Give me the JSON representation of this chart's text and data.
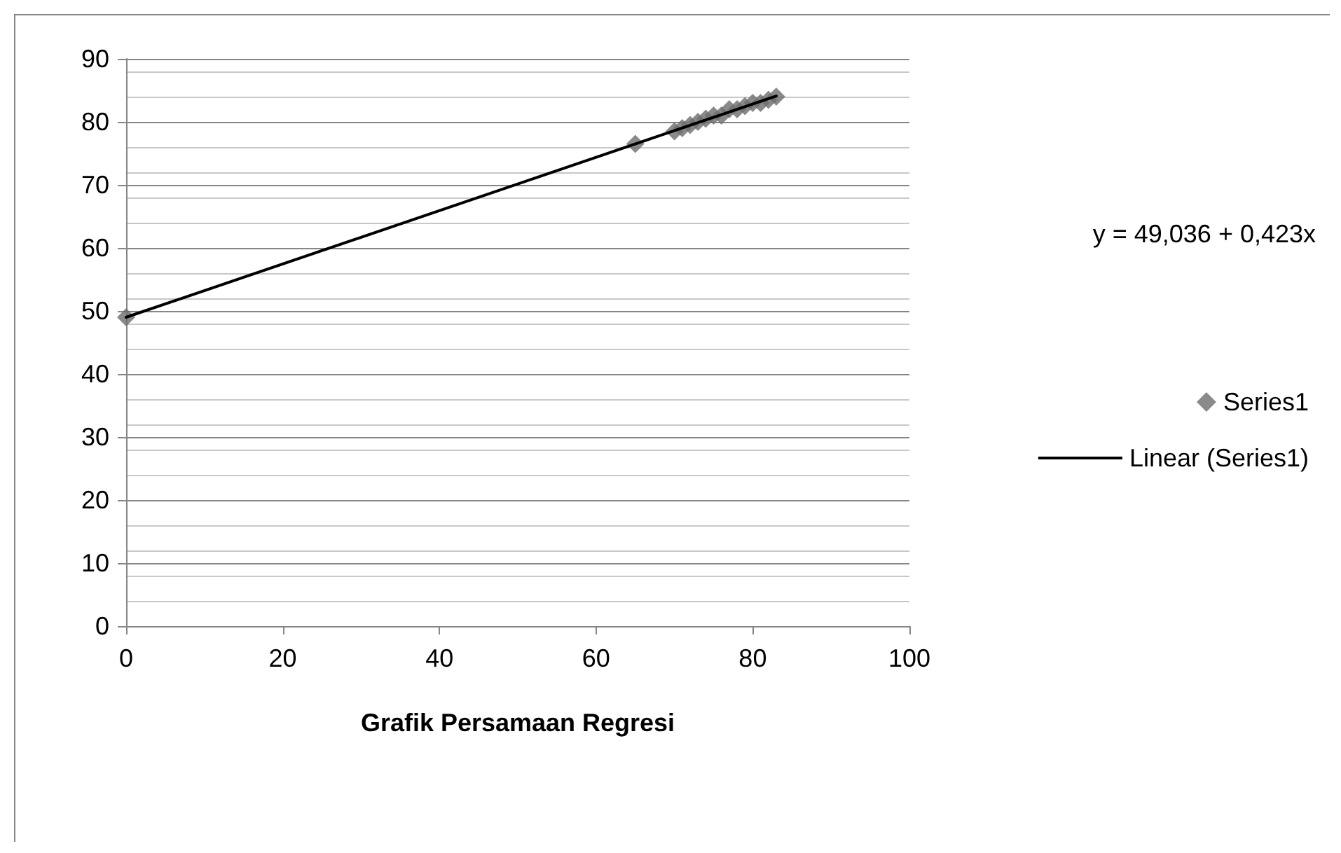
{
  "chart_data": {
    "type": "scatter",
    "xlabel": "Grafik Persamaan Regresi",
    "annotations": [
      "y = 49,036 + 0,423x"
    ],
    "series": [
      {
        "name": "Series1",
        "color": "#6d6d6d",
        "marker": "diamond",
        "x": [
          0,
          65,
          70,
          71,
          72,
          73,
          74,
          75,
          76,
          77,
          78,
          79,
          80,
          81,
          82,
          83
        ],
        "values": [
          49,
          76.5,
          78.5,
          79,
          79.5,
          80,
          80.5,
          81,
          81,
          82,
          82,
          82.5,
          83,
          83,
          83.5,
          84
        ]
      },
      {
        "name": "Linear (Series1)",
        "type": "line",
        "color": "#000000",
        "marker": "none",
        "line_style": "solid",
        "x": [
          0,
          83
        ],
        "values": [
          49,
          84.1
        ]
      }
    ],
    "xlim": [
      0,
      100
    ],
    "xticks": [
      0,
      20,
      40,
      60,
      80,
      100
    ],
    "ylim": [
      0,
      90
    ],
    "yticks": [
      0,
      10,
      20,
      30,
      40,
      50,
      60,
      70,
      80,
      90
    ],
    "grid": "y",
    "legend": "right"
  }
}
